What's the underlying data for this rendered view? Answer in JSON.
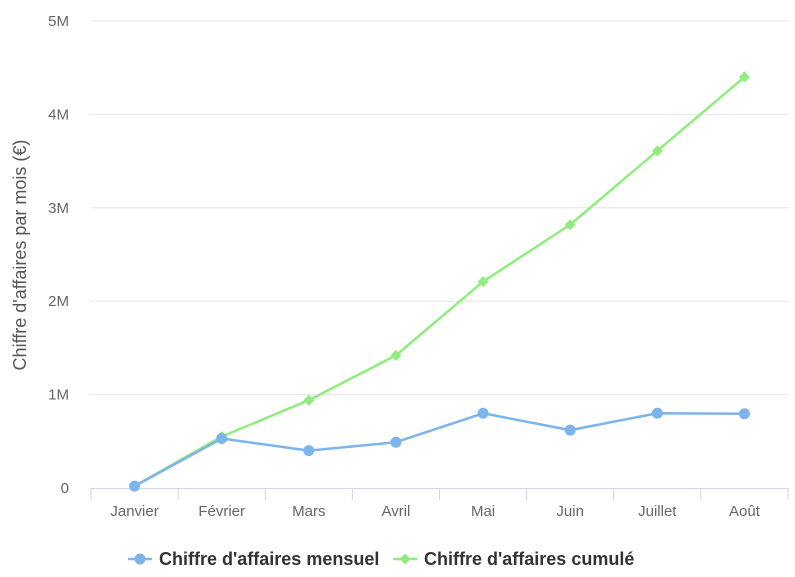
{
  "chart_data": {
    "type": "line",
    "categories": [
      "Janvier",
      "Février",
      "Mars",
      "Avril",
      "Mai",
      "Juin",
      "Juillet",
      "Août"
    ],
    "ylabel": "Chiffre d'affaires par mois (€)",
    "xlabel": "",
    "title": "",
    "ylim": [
      0,
      5000000
    ],
    "yticks": [
      {
        "value": 0,
        "label": "0"
      },
      {
        "value": 1000000,
        "label": "1M"
      },
      {
        "value": 2000000,
        "label": "2M"
      },
      {
        "value": 3000000,
        "label": "3M"
      },
      {
        "value": 4000000,
        "label": "4M"
      },
      {
        "value": 5000000,
        "label": "5M"
      }
    ],
    "grid": "horizontal",
    "legend": "bottom-center",
    "series": [
      {
        "name": "Chiffre d'affaires mensuel",
        "color": "#7cb5ec",
        "marker": "circle",
        "values": [
          20000,
          530000,
          400000,
          490000,
          800000,
          620000,
          800000,
          795000
        ]
      },
      {
        "name": "Chiffre d'affaires cumulé",
        "color": "#90ed7d",
        "marker": "diamond",
        "values": [
          20000,
          550000,
          940000,
          1420000,
          2210000,
          2820000,
          3610000,
          4400000
        ]
      }
    ]
  }
}
